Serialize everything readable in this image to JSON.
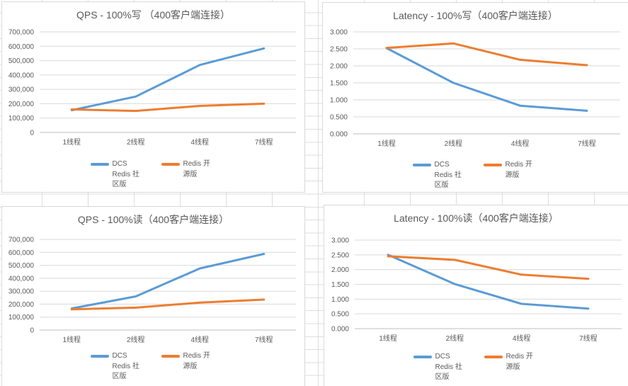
{
  "app": {
    "surface": "excel-worksheet"
  },
  "colors": {
    "series_blue": "#5B9BD5",
    "series_orange": "#ED7D31",
    "text": "#595959",
    "gridline": "#D9D9D9",
    "axis_line": "#BFBFBF",
    "cell_grid": "#DADDE0",
    "chart_border": "#D9D9D9",
    "chart_bg": "#FFFFFF"
  },
  "chart_data": [
    {
      "type": "line",
      "title": "QPS - 100%写 （400客户端连接）",
      "categories": [
        "1线程",
        "2线程",
        "4线程",
        "7线程"
      ],
      "series": [
        {
          "name": "DCS Redis 社区版",
          "color": "#5B9BD5",
          "values": [
            155000,
            250000,
            470000,
            585000
          ]
        },
        {
          "name": "Redis 开源版",
          "color": "#ED7D31",
          "values": [
            160000,
            150000,
            185000,
            200000
          ]
        }
      ],
      "xlabel": "",
      "ylabel": "",
      "ylim": [
        0,
        700000
      ],
      "ytick_labels": [
        "0",
        "100,000",
        "200,000",
        "300,000",
        "400,000",
        "500,000",
        "600,000",
        "700,000"
      ],
      "grid": true,
      "legend_position": "bottom"
    },
    {
      "type": "line",
      "title": "Latency - 100%写（400客户端连接）",
      "categories": [
        "1线程",
        "2线程",
        "4线程",
        "7线程"
      ],
      "series": [
        {
          "name": "DCS Redis 社区版",
          "color": "#5B9BD5",
          "values": [
            2.52,
            1.5,
            0.83,
            0.68
          ]
        },
        {
          "name": "Redis 开源版",
          "color": "#ED7D31",
          "values": [
            2.53,
            2.66,
            2.18,
            2.02
          ]
        }
      ],
      "xlabel": "",
      "ylabel": "",
      "ylim": [
        0,
        3
      ],
      "ytick_labels": [
        "0.000",
        "0.500",
        "1.000",
        "1.500",
        "2.000",
        "2.500",
        "3.000"
      ],
      "grid": true,
      "legend_position": "bottom"
    },
    {
      "type": "line",
      "title": "QPS - 100%读（400客户端连接）",
      "categories": [
        "1线程",
        "2线程",
        "4线程",
        "7线程"
      ],
      "series": [
        {
          "name": "DCS Redis 社区版",
          "color": "#5B9BD5",
          "values": [
            167000,
            260000,
            476000,
            588000
          ]
        },
        {
          "name": "Redis 开源版",
          "color": "#ED7D31",
          "values": [
            160000,
            173000,
            212000,
            235000
          ]
        }
      ],
      "xlabel": "",
      "ylabel": "",
      "ylim": [
        0,
        700000
      ],
      "ytick_labels": [
        "0",
        "100,000",
        "200,000",
        "300,000",
        "400,000",
        "500,000",
        "600,000",
        "700,000"
      ],
      "grid": true,
      "legend_position": "bottom"
    },
    {
      "type": "line",
      "title": "Latency - 100%读（400客户端连接）",
      "categories": [
        "1线程",
        "2线程",
        "4线程",
        "7线程"
      ],
      "series": [
        {
          "name": "DCS Redis 社区版",
          "color": "#5B9BD5",
          "values": [
            2.5,
            1.51,
            0.84,
            0.68
          ]
        },
        {
          "name": "Redis 开源版",
          "color": "#ED7D31",
          "values": [
            2.45,
            2.33,
            1.83,
            1.69
          ]
        }
      ],
      "xlabel": "",
      "ylabel": "",
      "ylim": [
        0,
        3
      ],
      "ytick_labels": [
        "0.000",
        "0.500",
        "1.000",
        "1.500",
        "2.000",
        "2.500",
        "3.000"
      ],
      "grid": true,
      "legend_position": "bottom"
    }
  ]
}
